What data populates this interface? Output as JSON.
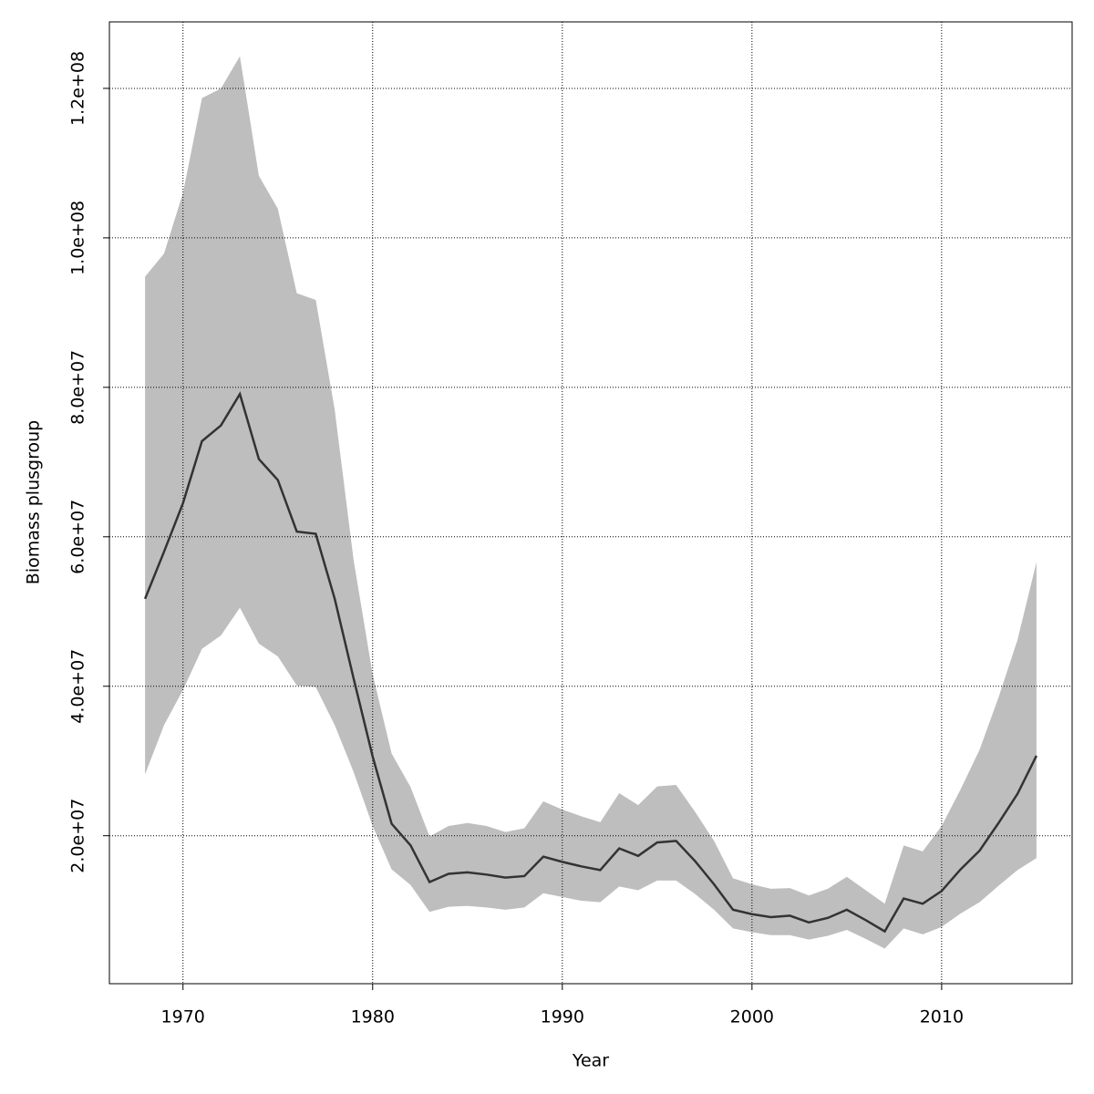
{
  "chart_data": {
    "type": "line",
    "x_label": "Year",
    "y_label": "Biomass plusgroup",
    "x": [
      1968,
      1969,
      1970,
      1971,
      1972,
      1973,
      1974,
      1975,
      1976,
      1977,
      1978,
      1979,
      1980,
      1981,
      1982,
      1983,
      1984,
      1985,
      1986,
      1987,
      1988,
      1989,
      1990,
      1991,
      1992,
      1993,
      1994,
      1995,
      1996,
      1997,
      1998,
      1999,
      2000,
      2001,
      2002,
      2003,
      2004,
      2005,
      2006,
      2007,
      2008,
      2009,
      2010,
      2011,
      2012,
      2013,
      2014,
      2015
    ],
    "values": [
      51700000,
      58000000,
      64500000,
      72800000,
      74900000,
      79100000,
      70400000,
      67600000,
      60700000,
      60400000,
      51700000,
      41000000,
      30600000,
      21600000,
      18700000,
      13800000,
      14900000,
      15100000,
      14800000,
      14400000,
      14600000,
      17200000,
      16500000,
      15900000,
      15400000,
      18300000,
      17300000,
      19100000,
      19300000,
      16600000,
      13500000,
      10100000,
      9500000,
      9100000,
      9300000,
      8400000,
      9000000,
      10100000,
      8700000,
      7200000,
      11600000,
      10900000,
      12600000,
      15500000,
      18000000,
      21700000,
      25600000,
      30700000
    ],
    "upper": [
      94800000,
      97900000,
      106000000,
      118700000,
      120000000,
      124300000,
      108300000,
      103900000,
      92600000,
      91700000,
      77000000,
      56800000,
      41600000,
      31000000,
      26500000,
      19900000,
      21300000,
      21700000,
      21300000,
      20500000,
      21000000,
      24600000,
      23500000,
      22600000,
      21800000,
      25700000,
      24100000,
      26600000,
      26800000,
      23200000,
      19300000,
      14300000,
      13500000,
      12900000,
      13000000,
      12000000,
      12900000,
      14500000,
      12700000,
      10900000,
      18700000,
      17900000,
      21300000,
      26200000,
      31500000,
      38500000,
      46200000,
      56600000
    ],
    "lower": [
      28200000,
      34800000,
      39500000,
      45000000,
      46800000,
      50500000,
      45700000,
      44000000,
      40100000,
      39900000,
      34800000,
      28500000,
      21300000,
      15500000,
      13400000,
      9800000,
      10500000,
      10600000,
      10400000,
      10100000,
      10400000,
      12300000,
      11800000,
      11300000,
      11100000,
      13200000,
      12700000,
      14000000,
      14000000,
      12200000,
      10100000,
      7600000,
      7100000,
      6700000,
      6700000,
      6100000,
      6600000,
      7400000,
      6200000,
      4900000,
      7600000,
      6800000,
      7800000,
      9600000,
      11100000,
      13300000,
      15400000,
      17000000
    ],
    "color": "#333333",
    "band_color": "#bebebe",
    "xlim": [
      1966.12,
      2016.88
    ],
    "ylim": [
      200000,
      128900000
    ],
    "xticks": [
      1970,
      1980,
      1990,
      2000,
      2010
    ],
    "yticks": [
      {
        "value": 20000000,
        "label": "2.0e+07"
      },
      {
        "value": 40000000,
        "label": "4.0e+07"
      },
      {
        "value": 60000000,
        "label": "6.0e+07"
      },
      {
        "value": 80000000,
        "label": "8.0e+07"
      },
      {
        "value": 100000000,
        "label": "1.0e+08"
      },
      {
        "value": 120000000,
        "label": "1.2e+08"
      }
    ],
    "grid": true
  }
}
